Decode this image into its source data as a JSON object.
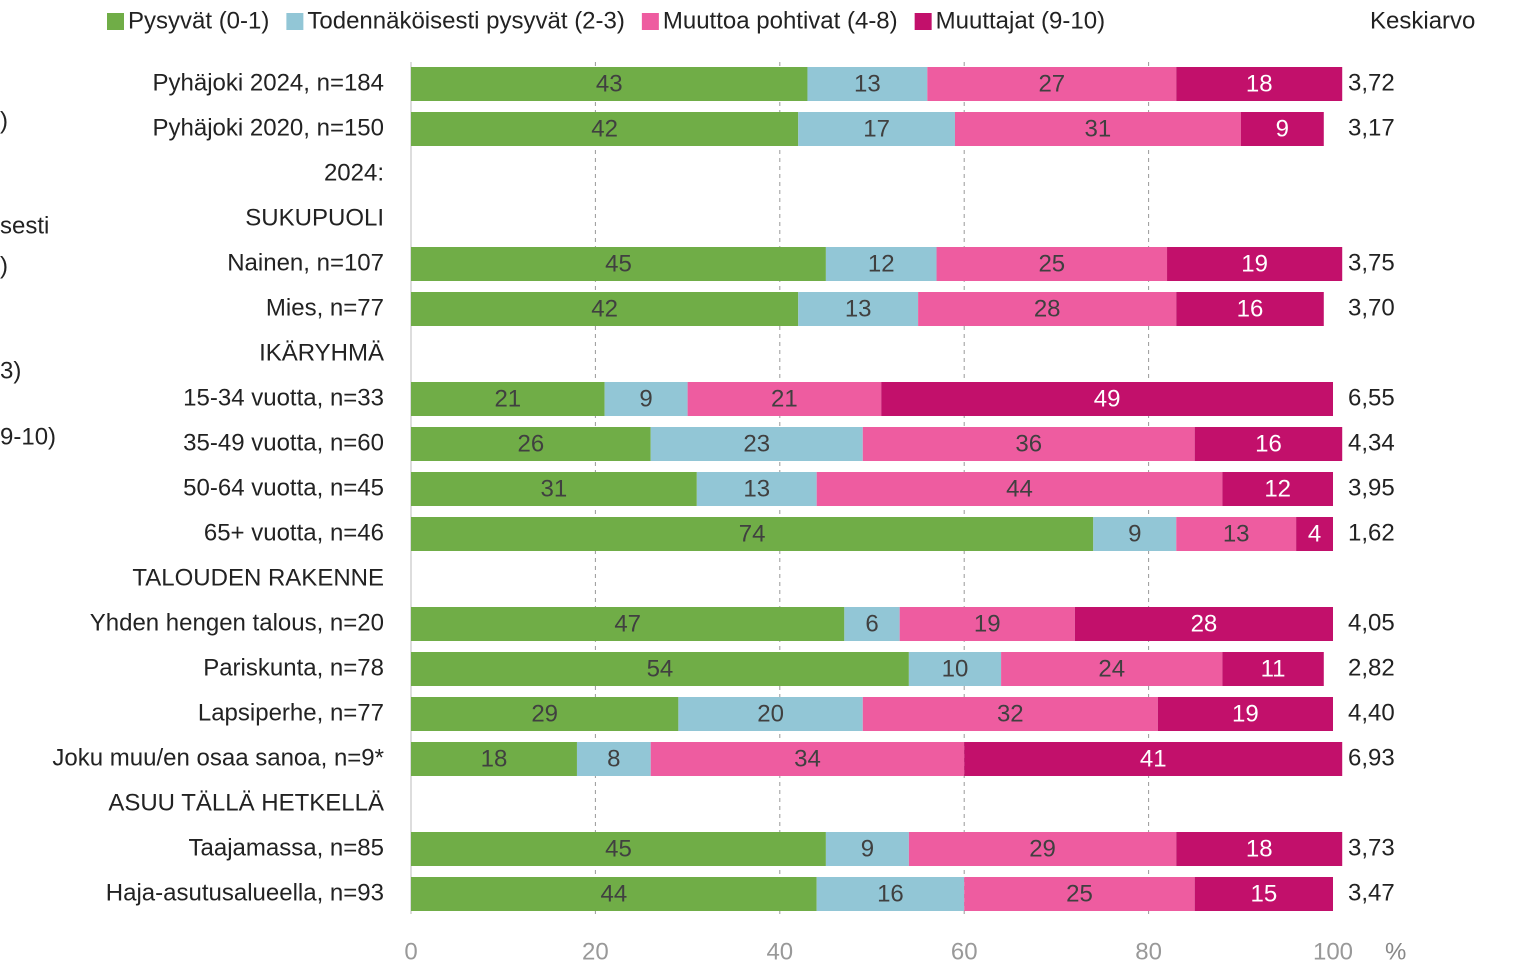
{
  "chart_data": {
    "type": "stacked_barh",
    "categories": [
      "Pyhäjoki 2024, n=184",
      "Pyhäjoki 2020, n=150",
      "2024:",
      "SUKUPUOLI",
      "Nainen, n=107",
      "Mies, n=77",
      "IKÄRYHMÄ",
      "15-34 vuotta, n=33",
      "35-49 vuotta, n=60",
      "50-64 vuotta, n=45",
      "65+ vuotta, n=46",
      "TALOUDEN RAKENNE",
      "Yhden hengen talous, n=20",
      "Pariskunta, n=78",
      "Lapsiperhe, n=77",
      "Joku muu/en osaa sanoa, n=9*",
      "ASUU TÄLLÄ HETKELLÄ",
      "Taajamassa, n=85",
      "Haja-asutusalueella, n=93"
    ],
    "series": [
      {
        "name": "Pysyvät (0-1)",
        "color": "#70ad47",
        "values": [
          43,
          42,
          null,
          null,
          45,
          42,
          null,
          21,
          26,
          31,
          74,
          null,
          47,
          54,
          29,
          18,
          null,
          45,
          44
        ]
      },
      {
        "name": "Todennäköisesti pysyvät (2-3)",
        "color": "#92c6d6",
        "values": [
          13,
          17,
          null,
          null,
          12,
          13,
          null,
          9,
          23,
          13,
          9,
          null,
          6,
          10,
          20,
          8,
          null,
          9,
          16
        ]
      },
      {
        "name": "Muuttoa pohtivat (4-8)",
        "color": "#ee5ca0",
        "values": [
          27,
          31,
          null,
          null,
          25,
          28,
          null,
          21,
          36,
          44,
          13,
          null,
          19,
          24,
          32,
          34,
          null,
          29,
          25
        ]
      },
      {
        "name": "Muuttajat (9-10)",
        "color": "#c2106b",
        "values": [
          18,
          9,
          null,
          null,
          19,
          16,
          null,
          49,
          16,
          12,
          4,
          null,
          28,
          11,
          19,
          41,
          null,
          18,
          15
        ]
      }
    ],
    "averages_title": "Keskiarvo",
    "averages": [
      3.72,
      3.17,
      null,
      null,
      3.75,
      3.7,
      null,
      6.55,
      4.34,
      3.95,
      1.62,
      null,
      4.05,
      2.82,
      4.4,
      6.93,
      null,
      3.73,
      3.47
    ],
    "averages_labels": [
      "3,72",
      "3,17",
      null,
      null,
      "3,75",
      "3,70",
      null,
      "6,55",
      "4,34",
      "3,95",
      "1,62",
      null,
      "4,05",
      "2,82",
      "4,40",
      "6,93",
      null,
      "3,73",
      "3,47"
    ],
    "xlim": [
      0,
      100
    ],
    "xticks": [
      0,
      20,
      40,
      60,
      80,
      100
    ],
    "x_unit": "%",
    "grid": true,
    "legend": "top",
    "left_fragments": [
      ")",
      "sesti",
      ")",
      "3)",
      "9-10)"
    ]
  }
}
